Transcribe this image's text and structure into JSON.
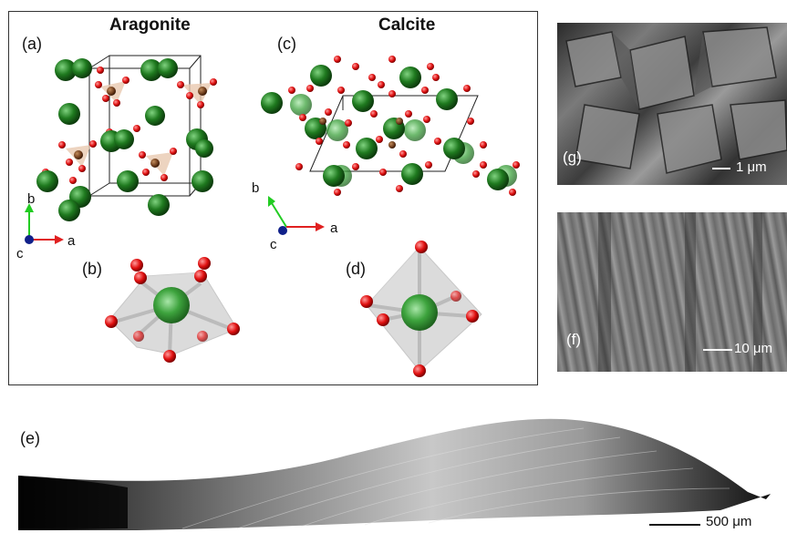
{
  "left_panel": {
    "aragonite_title": "Aragonite",
    "calcite_title": "Calcite",
    "labels": {
      "a": "(a)",
      "b": "(b)",
      "c": "(c)",
      "d": "(d)"
    },
    "axes": {
      "a": "a",
      "b": "b",
      "c": "c"
    }
  },
  "sem_top": {
    "label": "(g)",
    "scale": "1 μm"
  },
  "sem_mid": {
    "label": "(f)",
    "scale": "10 μm"
  },
  "shell": {
    "label": "(e)",
    "scale": "500 μm"
  },
  "colors": {
    "calcium": "#1f7a1f",
    "oxygen": "#e01010",
    "carbon": "#6b3a1a",
    "axis_a": "#e02020",
    "axis_b": "#22cc22",
    "axis_c": "#10208a"
  }
}
